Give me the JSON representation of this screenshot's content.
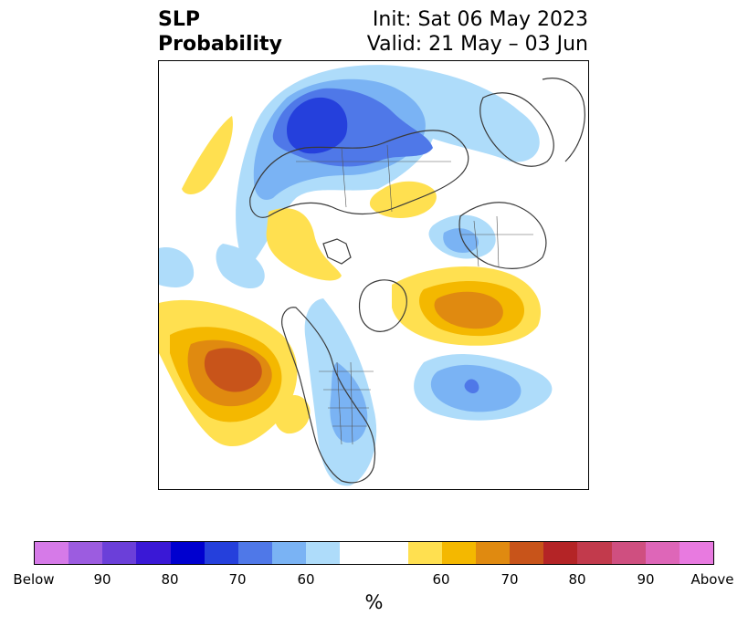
{
  "title": {
    "left_line1": "SLP",
    "left_line2": "Probability",
    "right_line1": "Init: Sat 06 May 2023",
    "right_line2": "Valid: 21 May – 03 Jun"
  },
  "colorbar": {
    "unit": "%",
    "colors": [
      "#d67ae8",
      "#9c5ce0",
      "#6b3fd9",
      "#3a18d6",
      "#0000cf",
      "#2540dc",
      "#4f78e8",
      "#7ab3f4",
      "#aedcfa",
      "#ffffff",
      "#ffe050",
      "#f4b800",
      "#e08a10",
      "#c8541a",
      "#b42426",
      "#c23a4c",
      "#cf4f80",
      "#de66b8",
      "#e87ae0"
    ],
    "ticks": [
      {
        "label": "Below"
      },
      {
        "label": "90"
      },
      {
        "label": "80"
      },
      {
        "label": "70"
      },
      {
        "label": "60"
      },
      {
        "label": "60"
      },
      {
        "label": "70"
      },
      {
        "label": "80"
      },
      {
        "label": "90"
      },
      {
        "label": "Above"
      }
    ]
  },
  "map": {
    "projection": "north-polar-stereographic",
    "anomaly_colors": {
      "below_60": "#aedcfa",
      "below_65": "#7ab3f4",
      "below_70": "#4f78e8",
      "below_75": "#2540dc",
      "above_60": "#ffe050",
      "above_65": "#f4b800",
      "above_70": "#e08a10",
      "above_75": "#c8541a"
    }
  }
}
